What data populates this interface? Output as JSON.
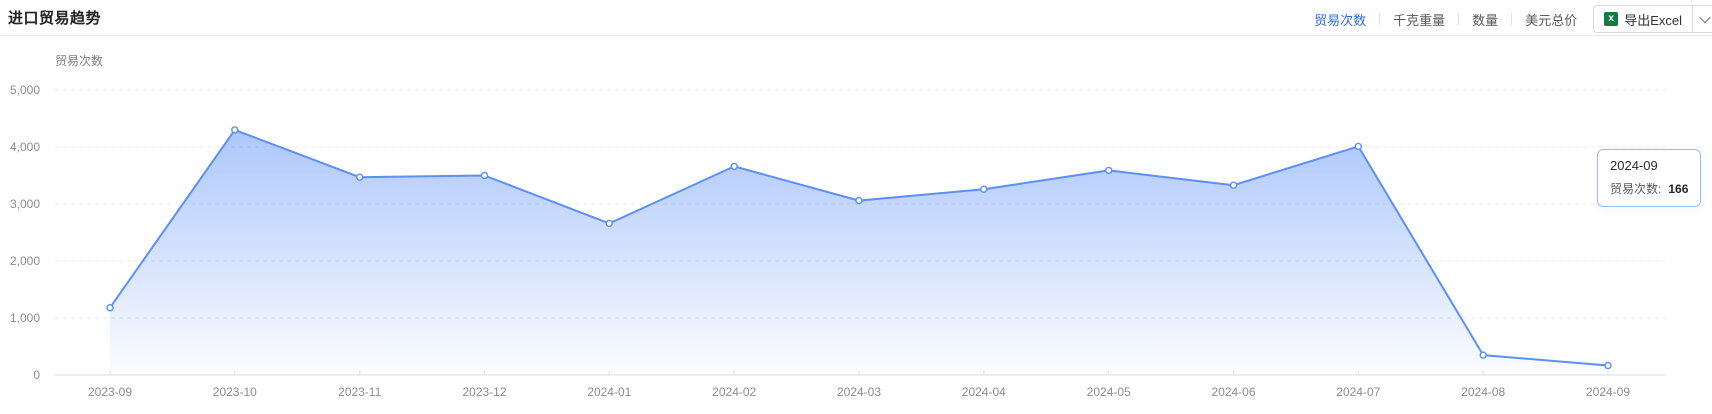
{
  "header": {
    "title": "进口贸易趋势",
    "metric_tabs": [
      {
        "label": "贸易次数",
        "active": true
      },
      {
        "label": "千克重量",
        "active": false
      },
      {
        "label": "数量",
        "active": false
      },
      {
        "label": "美元总价",
        "active": false
      }
    ],
    "export_button": {
      "label": "导出Excel",
      "icon": "excel-icon",
      "icon_letter": "x"
    }
  },
  "tooltip": {
    "title": "2024-09",
    "label": "贸易次数:",
    "value": "166"
  },
  "chart_data": {
    "type": "area",
    "y_axis_title": "贸易次数",
    "categories": [
      "2023-09",
      "2023-10",
      "2023-11",
      "2023-12",
      "2024-01",
      "2024-02",
      "2024-03",
      "2024-04",
      "2024-05",
      "2024-06",
      "2024-07",
      "2024-08",
      "2024-09"
    ],
    "values": [
      1180,
      4300,
      3470,
      3500,
      2660,
      3660,
      3060,
      3260,
      3590,
      3330,
      4010,
      350,
      166
    ],
    "y_ticks": [
      0,
      1000,
      2000,
      3000,
      4000,
      5000
    ],
    "ylim": [
      0,
      5000
    ],
    "grid": "horizontal-dashed",
    "legend": "none",
    "line_color": "#5b8ff9",
    "point_fill": "#ffffff",
    "area_gradient_top": "rgba(91,143,249,0.50)",
    "area_gradient_bottom": "rgba(91,143,249,0.02)",
    "axis_line_color": "#dcdcdc",
    "grid_line_color": "#e8e8e8",
    "tick_label_color": "#8c8c8c",
    "highlighted_point": {
      "category": "2024-09",
      "value": 166
    }
  }
}
